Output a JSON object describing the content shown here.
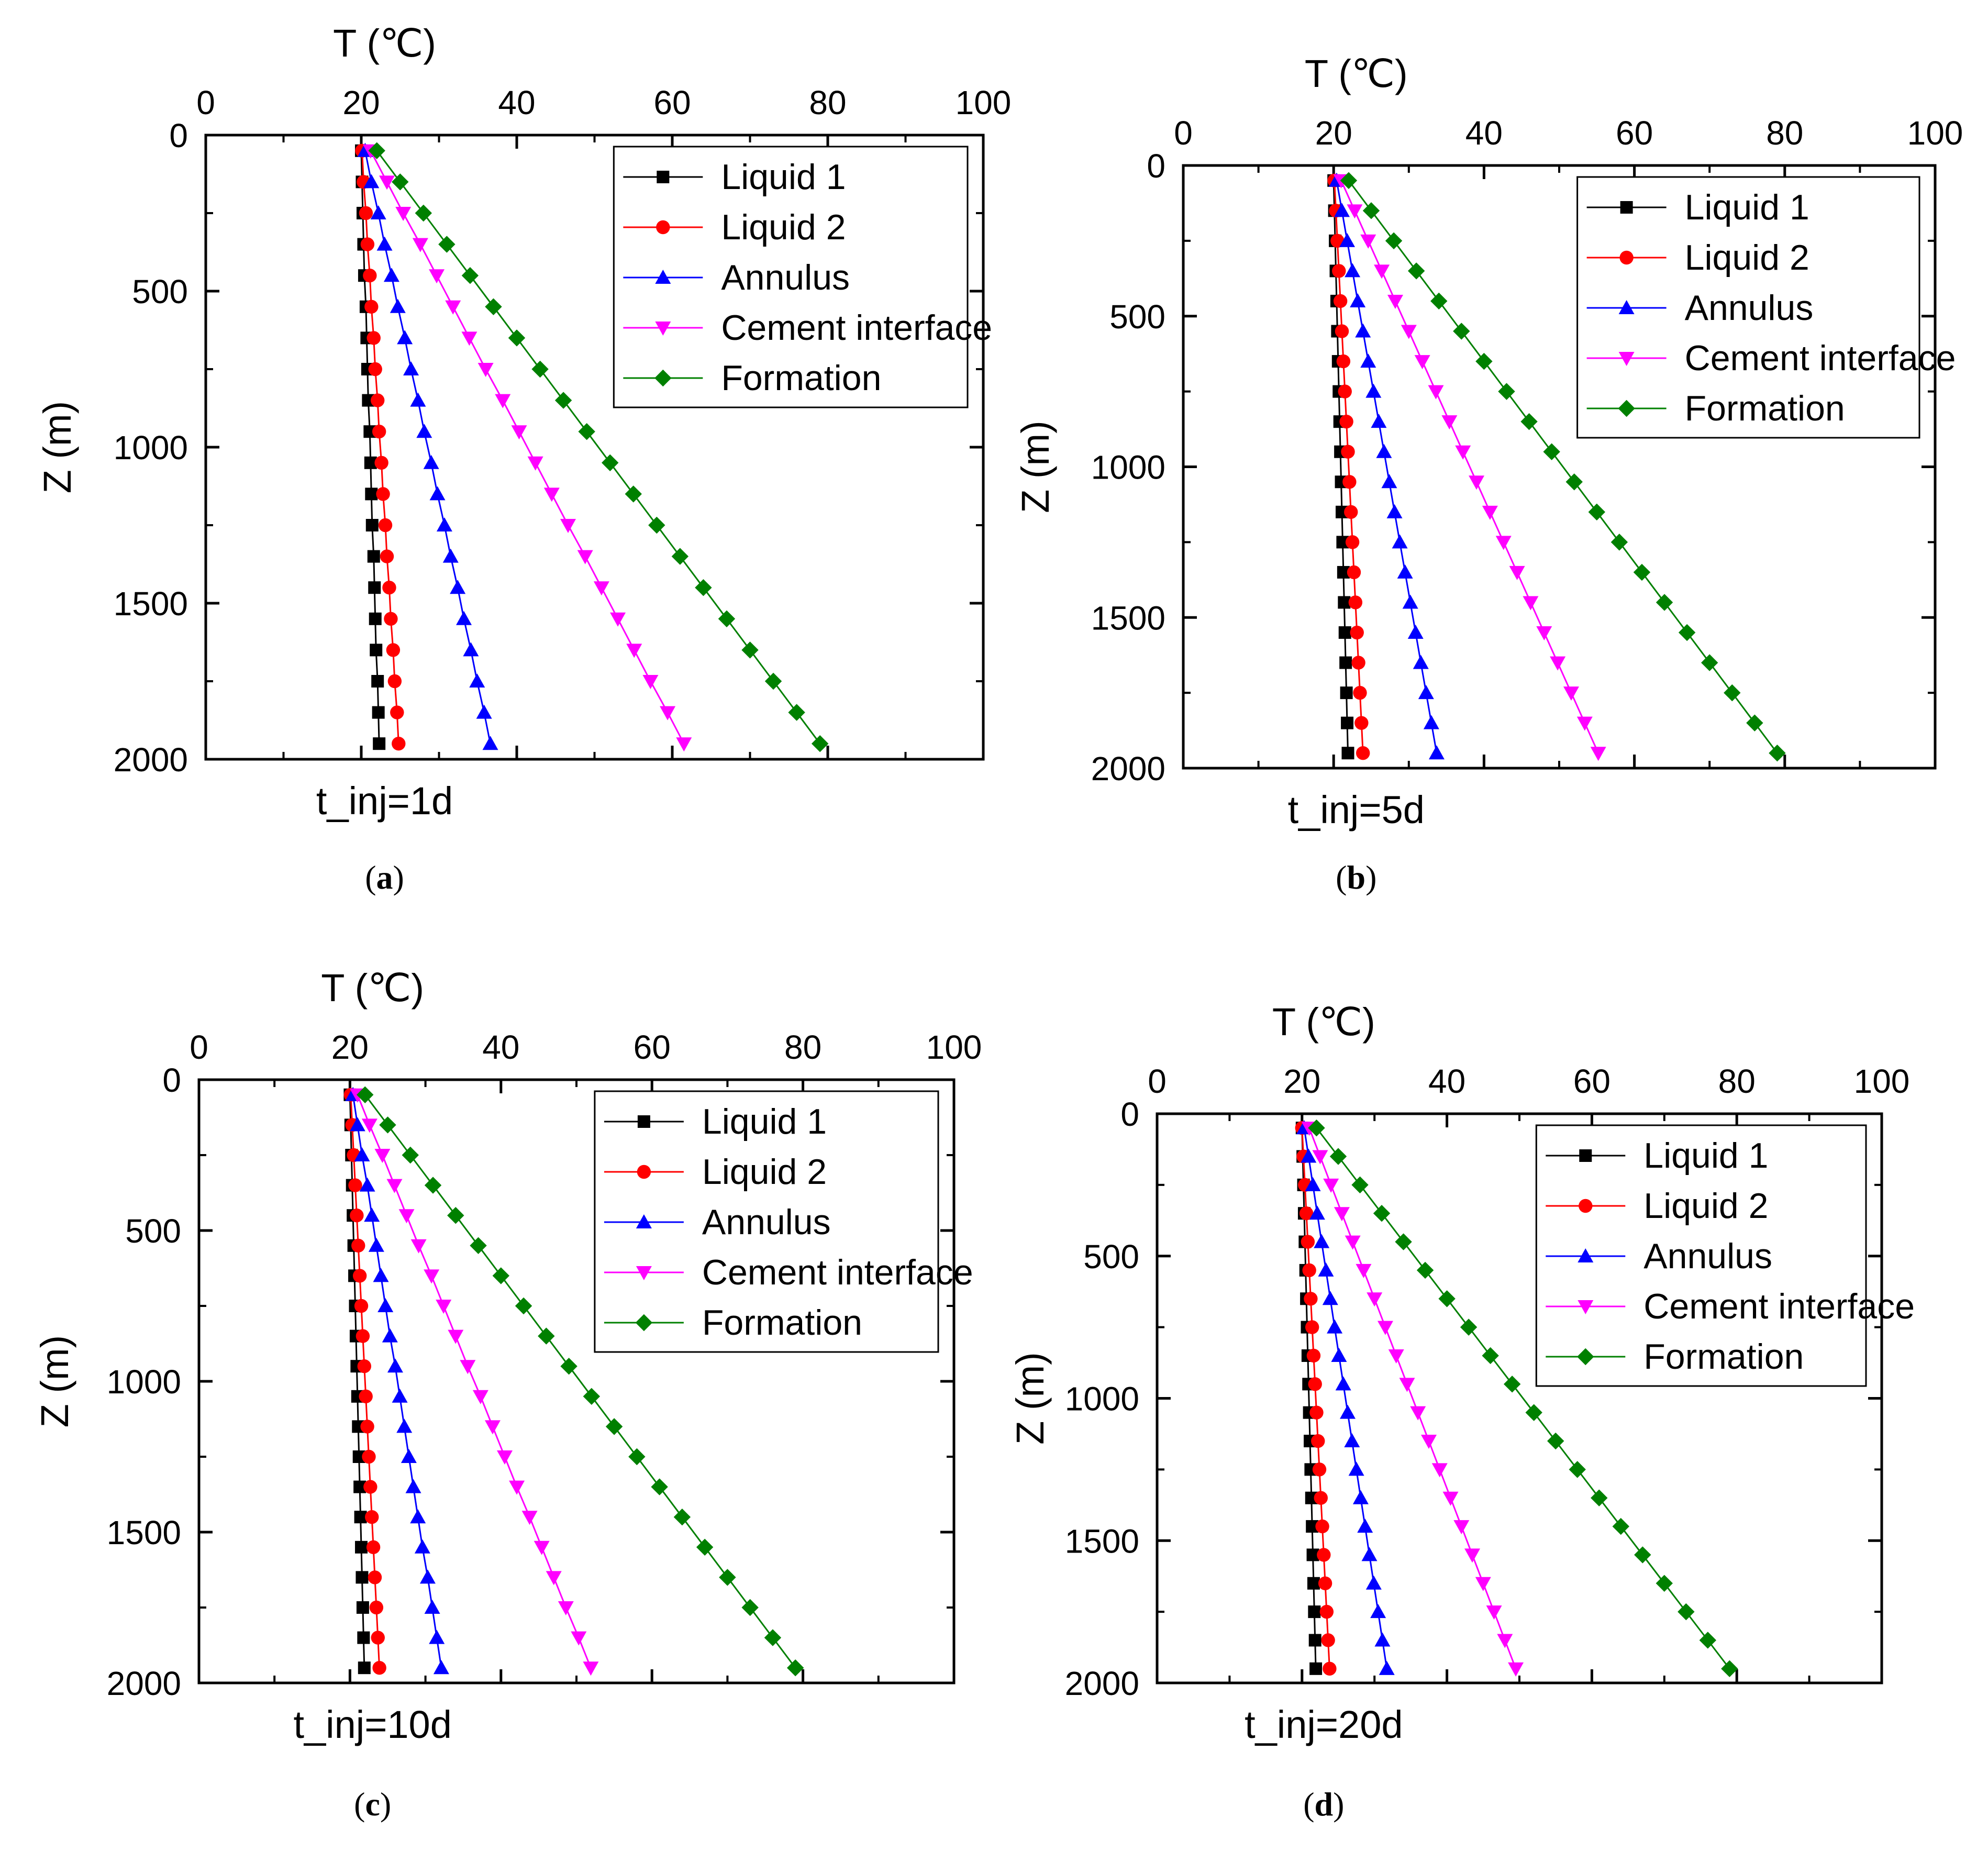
{
  "chart_data": [
    {
      "type": "line",
      "panel_label": "a",
      "title": "t_inj=1d",
      "xlabel": "T (℃)",
      "ylabel": "Z (m)",
      "xlim": [
        0,
        100
      ],
      "ylim": [
        0,
        2000
      ],
      "y_inverted": true,
      "x_axis_position": "top",
      "xticks": [
        "0",
        "20",
        "40",
        "60",
        "80",
        "100"
      ],
      "yticks": [
        "0",
        "500",
        "1000",
        "1500",
        "2000"
      ],
      "legend_position": "top-right",
      "depths": [
        50,
        150,
        250,
        350,
        450,
        550,
        650,
        750,
        850,
        950,
        1050,
        1150,
        1250,
        1350,
        1450,
        1550,
        1650,
        1750,
        1850,
        1950
      ],
      "series": [
        {
          "name": "Liquid 1",
          "color": "#000000",
          "marker": "square",
          "values": [
            20.0,
            20.1,
            20.2,
            20.3,
            20.4,
            20.6,
            20.7,
            20.8,
            20.9,
            21.1,
            21.2,
            21.3,
            21.4,
            21.6,
            21.7,
            21.8,
            21.9,
            22.1,
            22.2,
            22.3
          ]
        },
        {
          "name": "Liquid 2",
          "color": "#ff0000",
          "marker": "circle",
          "values": [
            20.1,
            20.3,
            20.6,
            20.8,
            21.1,
            21.3,
            21.6,
            21.8,
            22.1,
            22.3,
            22.6,
            22.8,
            23.1,
            23.3,
            23.6,
            23.8,
            24.1,
            24.3,
            24.6,
            24.8
          ]
        },
        {
          "name": "Annulus",
          "color": "#0000ff",
          "marker": "triangle-up",
          "values": [
            20.5,
            21.3,
            22.2,
            23.0,
            23.9,
            24.7,
            25.6,
            26.4,
            27.3,
            28.1,
            29.0,
            29.8,
            30.7,
            31.5,
            32.4,
            33.2,
            34.1,
            34.9,
            35.8,
            36.6
          ]
        },
        {
          "name": "Cement interface",
          "color": "#ff00ff",
          "marker": "triangle-down",
          "values": [
            21.2,
            23.3,
            25.4,
            27.6,
            29.7,
            31.8,
            33.9,
            36.0,
            38.2,
            40.3,
            42.4,
            44.5,
            46.6,
            48.8,
            50.9,
            53.0,
            55.1,
            57.2,
            59.4,
            61.5
          ]
        },
        {
          "name": "Formation",
          "color": "#008000",
          "marker": "diamond",
          "values": [
            22.0,
            25.0,
            28.0,
            31.0,
            34.0,
            37.0,
            40.0,
            43.0,
            46.0,
            49.0,
            52.0,
            55.0,
            58.0,
            61.0,
            64.0,
            67.0,
            70.0,
            73.0,
            76.0,
            79.0
          ]
        }
      ]
    },
    {
      "type": "line",
      "panel_label": "b",
      "title": "t_inj=5d",
      "xlabel": "T (℃)",
      "ylabel": "Z (m)",
      "xlim": [
        0,
        100
      ],
      "ylim": [
        0,
        2000
      ],
      "y_inverted": true,
      "x_axis_position": "top",
      "xticks": [
        "0",
        "20",
        "40",
        "60",
        "80",
        "100"
      ],
      "yticks": [
        "0",
        "500",
        "1000",
        "1500",
        "2000"
      ],
      "legend_position": "top-right",
      "depths": [
        50,
        150,
        250,
        350,
        450,
        550,
        650,
        750,
        850,
        950,
        1050,
        1150,
        1250,
        1350,
        1450,
        1550,
        1650,
        1750,
        1850,
        1950
      ],
      "series": [
        {
          "name": "Liquid 1",
          "color": "#000000",
          "marker": "square",
          "values": [
            20.0,
            20.1,
            20.2,
            20.3,
            20.4,
            20.5,
            20.6,
            20.7,
            20.8,
            20.9,
            21.0,
            21.1,
            21.2,
            21.3,
            21.4,
            21.5,
            21.6,
            21.7,
            21.8,
            21.9
          ]
        },
        {
          "name": "Liquid 2",
          "color": "#ff0000",
          "marker": "circle",
          "values": [
            20.1,
            20.3,
            20.5,
            20.7,
            20.9,
            21.1,
            21.3,
            21.5,
            21.7,
            21.9,
            22.1,
            22.3,
            22.5,
            22.7,
            22.9,
            23.1,
            23.3,
            23.5,
            23.7,
            23.9
          ]
        },
        {
          "name": "Annulus",
          "color": "#0000ff",
          "marker": "triangle-up",
          "values": [
            20.4,
            21.1,
            21.8,
            22.5,
            23.2,
            23.9,
            24.6,
            25.3,
            26.0,
            26.7,
            27.4,
            28.1,
            28.8,
            29.5,
            30.2,
            30.9,
            31.6,
            32.3,
            33.0,
            33.7
          ]
        },
        {
          "name": "Cement interface",
          "color": "#ff00ff",
          "marker": "triangle-down",
          "values": [
            21.0,
            22.8,
            24.6,
            26.4,
            28.2,
            30.0,
            31.8,
            33.6,
            35.4,
            37.2,
            39.0,
            40.8,
            42.6,
            44.4,
            46.2,
            48.0,
            49.8,
            51.6,
            53.4,
            55.2
          ]
        },
        {
          "name": "Formation",
          "color": "#008000",
          "marker": "diamond",
          "values": [
            22.0,
            25.0,
            28.0,
            31.0,
            34.0,
            37.0,
            40.0,
            43.0,
            46.0,
            49.0,
            52.0,
            55.0,
            58.0,
            61.0,
            64.0,
            67.0,
            70.0,
            73.0,
            76.0,
            79.0
          ]
        }
      ]
    },
    {
      "type": "line",
      "panel_label": "c",
      "title": "t_inj=10d",
      "xlabel": "T (℃)",
      "ylabel": "Z (m)",
      "xlim": [
        0,
        100
      ],
      "ylim": [
        0,
        2000
      ],
      "y_inverted": true,
      "x_axis_position": "top",
      "xticks": [
        "0",
        "20",
        "40",
        "60",
        "80",
        "100"
      ],
      "yticks": [
        "0",
        "500",
        "1000",
        "1500",
        "2000"
      ],
      "legend_position": "top-right",
      "depths": [
        50,
        150,
        250,
        350,
        450,
        550,
        650,
        750,
        850,
        950,
        1050,
        1150,
        1250,
        1350,
        1450,
        1550,
        1650,
        1750,
        1850,
        1950
      ],
      "series": [
        {
          "name": "Liquid 1",
          "color": "#000000",
          "marker": "square",
          "values": [
            20.0,
            20.1,
            20.2,
            20.3,
            20.4,
            20.5,
            20.6,
            20.7,
            20.8,
            20.9,
            21.0,
            21.1,
            21.2,
            21.3,
            21.4,
            21.5,
            21.6,
            21.7,
            21.8,
            21.9
          ]
        },
        {
          "name": "Liquid 2",
          "color": "#ff0000",
          "marker": "circle",
          "values": [
            20.1,
            20.3,
            20.5,
            20.7,
            20.9,
            21.1,
            21.3,
            21.5,
            21.7,
            21.9,
            22.1,
            22.3,
            22.5,
            22.7,
            22.9,
            23.1,
            23.3,
            23.5,
            23.7,
            23.9
          ]
        },
        {
          "name": "Annulus",
          "color": "#0000ff",
          "marker": "triangle-up",
          "values": [
            20.4,
            21.0,
            21.6,
            22.3,
            22.9,
            23.5,
            24.1,
            24.7,
            25.3,
            26.0,
            26.6,
            27.2,
            27.8,
            28.4,
            29.0,
            29.6,
            30.3,
            30.9,
            31.5,
            32.1
          ]
        },
        {
          "name": "Cement interface",
          "color": "#ff00ff",
          "marker": "triangle-down",
          "values": [
            21.0,
            22.6,
            24.3,
            25.9,
            27.5,
            29.1,
            30.8,
            32.4,
            34.0,
            35.6,
            37.3,
            38.9,
            40.5,
            42.1,
            43.8,
            45.4,
            47.0,
            48.6,
            50.3,
            51.9
          ]
        },
        {
          "name": "Formation",
          "color": "#008000",
          "marker": "diamond",
          "values": [
            22.0,
            25.0,
            28.0,
            31.0,
            34.0,
            37.0,
            40.0,
            43.0,
            46.0,
            49.0,
            52.0,
            55.0,
            58.0,
            61.0,
            64.0,
            67.0,
            70.0,
            73.0,
            76.0,
            79.0
          ]
        }
      ]
    },
    {
      "type": "line",
      "panel_label": "d",
      "title": "t_inj=20d",
      "xlabel": "T (℃)",
      "ylabel": "Z (m)",
      "xlim": [
        0,
        100
      ],
      "ylim": [
        0,
        2000
      ],
      "y_inverted": true,
      "x_axis_position": "top",
      "xticks": [
        "0",
        "20",
        "40",
        "60",
        "80",
        "100"
      ],
      "yticks": [
        "0",
        "500",
        "1000",
        "1500",
        "2000"
      ],
      "legend_position": "top-right",
      "depths": [
        50,
        150,
        250,
        350,
        450,
        550,
        650,
        750,
        850,
        950,
        1050,
        1150,
        1250,
        1350,
        1450,
        1550,
        1650,
        1750,
        1850,
        1950
      ],
      "series": [
        {
          "name": "Liquid 1",
          "color": "#000000",
          "marker": "square",
          "values": [
            20.0,
            20.1,
            20.2,
            20.3,
            20.4,
            20.5,
            20.6,
            20.7,
            20.8,
            20.9,
            21.0,
            21.1,
            21.2,
            21.3,
            21.4,
            21.5,
            21.6,
            21.7,
            21.8,
            21.9
          ]
        },
        {
          "name": "Liquid 2",
          "color": "#ff0000",
          "marker": "circle",
          "values": [
            20.0,
            20.2,
            20.4,
            20.6,
            20.8,
            21.0,
            21.2,
            21.4,
            21.6,
            21.8,
            22.0,
            22.2,
            22.4,
            22.6,
            22.8,
            23.0,
            23.2,
            23.4,
            23.6,
            23.8
          ]
        },
        {
          "name": "Annulus",
          "color": "#0000ff",
          "marker": "triangle-up",
          "values": [
            20.3,
            20.9,
            21.5,
            22.1,
            22.7,
            23.3,
            23.9,
            24.5,
            25.1,
            25.7,
            26.3,
            26.9,
            27.5,
            28.1,
            28.7,
            29.3,
            29.9,
            30.5,
            31.1,
            31.7
          ]
        },
        {
          "name": "Cement interface",
          "color": "#ff00ff",
          "marker": "triangle-down",
          "values": [
            21.0,
            22.5,
            24.0,
            25.5,
            27.0,
            28.5,
            30.0,
            31.5,
            33.0,
            34.5,
            36.0,
            37.5,
            39.0,
            40.5,
            42.0,
            43.5,
            45.0,
            46.5,
            48.0,
            49.5
          ]
        },
        {
          "name": "Formation",
          "color": "#008000",
          "marker": "diamond",
          "values": [
            22.0,
            25.0,
            28.0,
            31.0,
            34.0,
            37.0,
            40.0,
            43.0,
            46.0,
            49.0,
            52.0,
            55.0,
            58.0,
            61.0,
            64.0,
            67.0,
            70.0,
            73.0,
            76.0,
            79.0
          ]
        }
      ]
    }
  ]
}
